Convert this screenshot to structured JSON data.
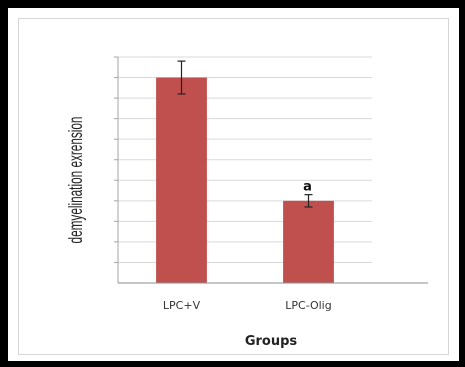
{
  "chart_data": {
    "type": "bar",
    "categories": [
      "LPC+V",
      "LPC-Olig"
    ],
    "values": [
      100,
      40
    ],
    "errors": [
      8,
      3
    ],
    "xlabel": "Groups",
    "ylabel": "demyelination exrension",
    "ylim": [
      0,
      110
    ],
    "y_gridline_step": 10,
    "grid": true,
    "annotations": [
      {
        "category": "LPC-Olig",
        "text": "a"
      }
    ],
    "bar_color": "#c0504d"
  }
}
